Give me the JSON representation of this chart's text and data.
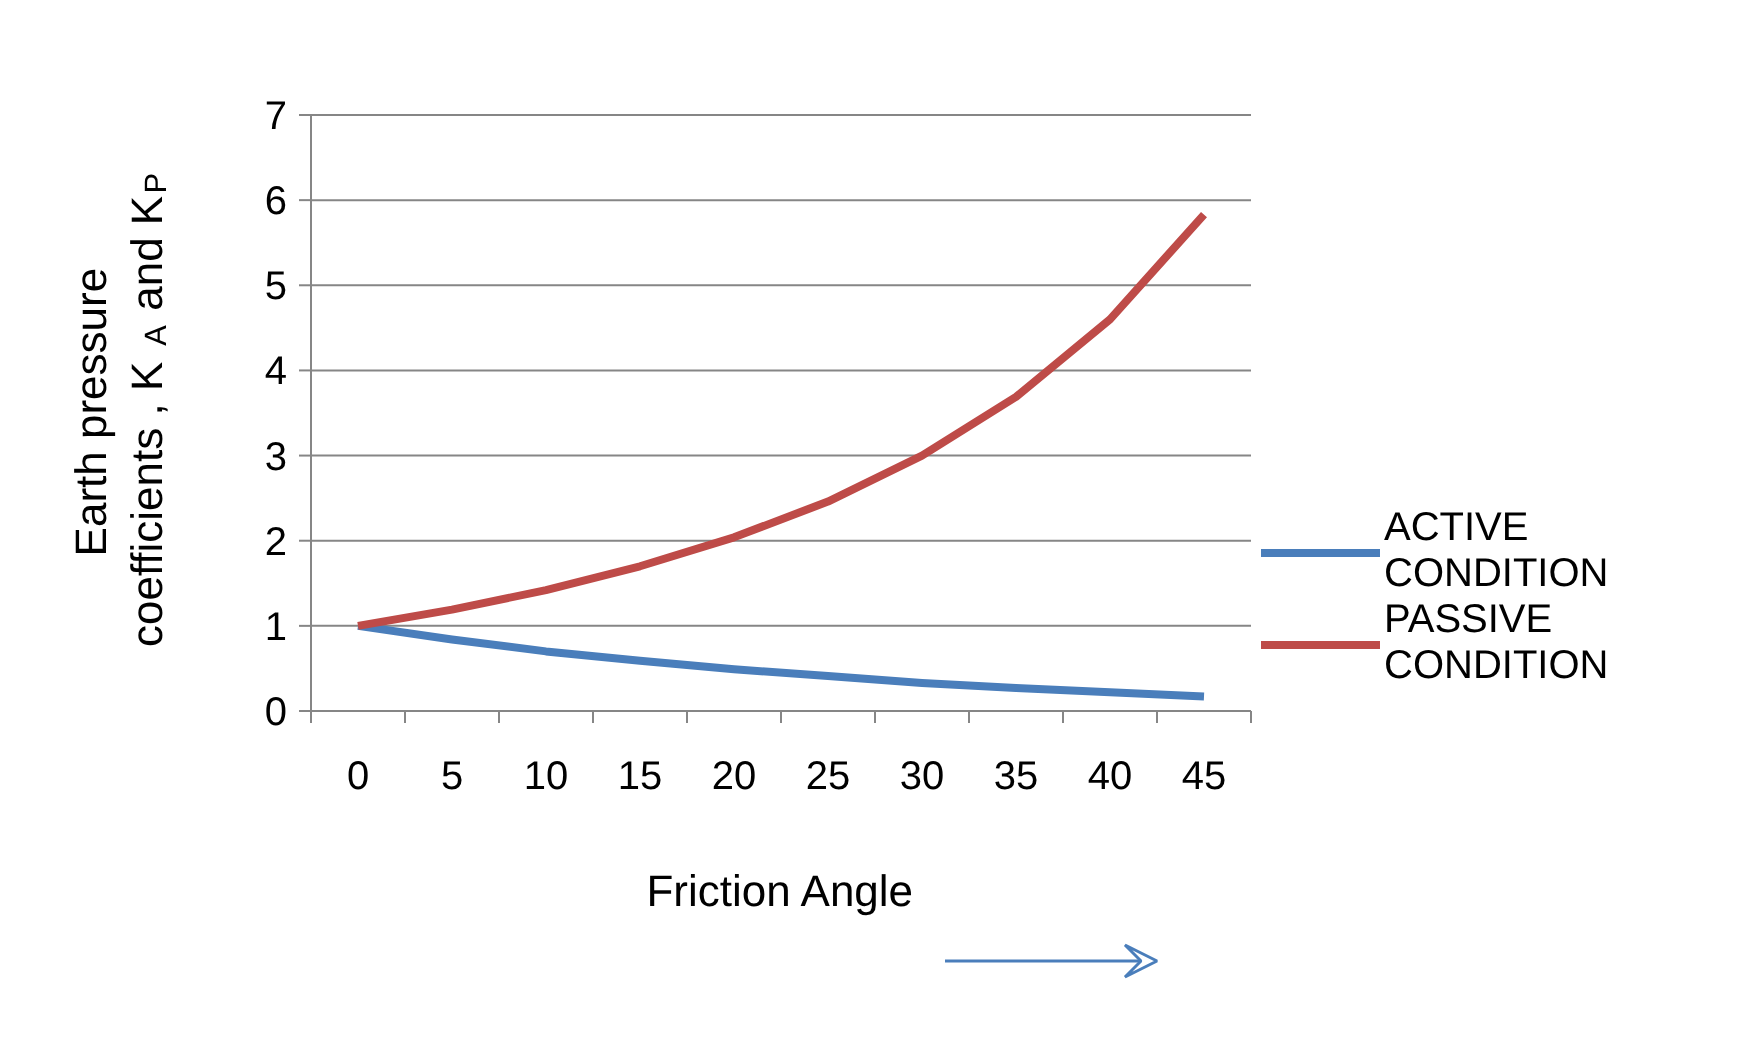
{
  "chart_data": {
    "type": "line",
    "xlabel": "Friction Angle",
    "ylabel": "Earth pressure coefficients , K$_{A}$ and K$_{P}$",
    "categories": [
      "0",
      "5",
      "10",
      "15",
      "20",
      "25",
      "30",
      "35",
      "40",
      "45"
    ],
    "series": [
      {
        "name": "ACTIVE CONDITION",
        "color": "#4a7ebb",
        "values": [
          1.0,
          0.84,
          0.7,
          0.59,
          0.49,
          0.41,
          0.33,
          0.27,
          0.22,
          0.17
        ]
      },
      {
        "name": "PASSIVE CONDITION",
        "color": "#be4b48",
        "values": [
          1.0,
          1.19,
          1.42,
          1.7,
          2.04,
          2.46,
          3.0,
          3.69,
          4.6,
          5.83
        ]
      }
    ],
    "ylim": [
      0,
      7
    ],
    "yticks": [
      0,
      1,
      2,
      3,
      4,
      5,
      6,
      7
    ],
    "grid": "y",
    "legend": "right",
    "marker": "none",
    "line_style": "solid"
  }
}
